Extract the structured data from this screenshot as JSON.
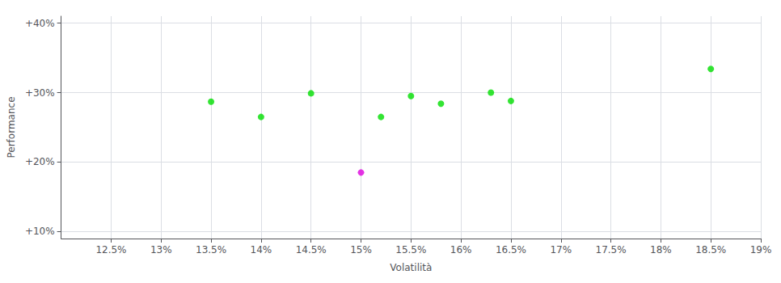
{
  "chart_data": {
    "type": "scatter",
    "xlabel": "Volatilità",
    "ylabel": "Performance",
    "xlim": [
      0.12,
      0.19
    ],
    "ylim": [
      0.09,
      0.41
    ],
    "xticks": [
      {
        "value": 0.125,
        "label": "12.5%"
      },
      {
        "value": 0.13,
        "label": "13%"
      },
      {
        "value": 0.135,
        "label": "13.5%"
      },
      {
        "value": 0.14,
        "label": "14%"
      },
      {
        "value": 0.145,
        "label": "14.5%"
      },
      {
        "value": 0.15,
        "label": "15%"
      },
      {
        "value": 0.155,
        "label": "15.5%"
      },
      {
        "value": 0.16,
        "label": "16%"
      },
      {
        "value": 0.165,
        "label": "16.5%"
      },
      {
        "value": 0.17,
        "label": "17%"
      },
      {
        "value": 0.175,
        "label": "17.5%"
      },
      {
        "value": 0.18,
        "label": "18%"
      },
      {
        "value": 0.185,
        "label": "18.5%"
      },
      {
        "value": 0.19,
        "label": "19%"
      }
    ],
    "yticks": [
      {
        "value": 0.1,
        "label": "+10%"
      },
      {
        "value": 0.2,
        "label": "+20%"
      },
      {
        "value": 0.3,
        "label": "+30%"
      },
      {
        "value": 0.4,
        "label": "+40%"
      }
    ],
    "grid": true,
    "series": [
      {
        "color": "#00dd00",
        "x": [
          0.135,
          0.14,
          0.145,
          0.152,
          0.155,
          0.158,
          0.163,
          0.165,
          0.185
        ],
        "values": [
          0.287,
          0.265,
          0.299,
          0.265,
          0.295,
          0.284,
          0.3,
          0.288,
          0.334
        ]
      },
      {
        "color": "#dd00dd",
        "x": [
          0.15
        ],
        "values": [
          0.185
        ]
      }
    ]
  }
}
